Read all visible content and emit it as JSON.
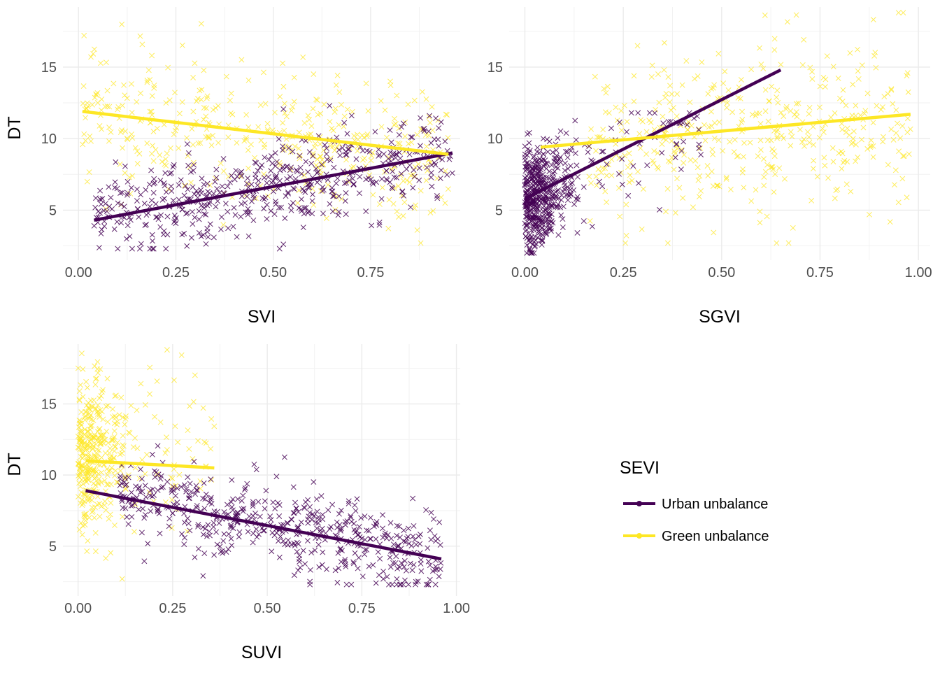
{
  "legend": {
    "title": "SEVI",
    "entries": [
      {
        "label": "Urban unbalance",
        "color": "#440154"
      },
      {
        "label": "Green unbalance",
        "color": "#FDE725"
      }
    ]
  },
  "chart_data": [
    {
      "type": "scatter",
      "xlabel": "SVI",
      "ylabel": "DT",
      "xlim": [
        -0.04,
        0.98
      ],
      "ylim": [
        1.5,
        19.2
      ],
      "xticks": [
        0,
        0.25,
        0.5,
        0.75
      ],
      "xtick_labels": [
        "0.00",
        "0.25",
        "0.50",
        "0.75"
      ],
      "yticks": [
        5,
        10,
        15
      ],
      "ytick_labels": [
        "5",
        "10",
        "15"
      ],
      "grid": true,
      "marker": "x",
      "series": [
        {
          "name": "Urban unbalance",
          "color": "#440154",
          "cloud": {
            "x_min": 0.04,
            "x_max": 0.96,
            "y_at_xmin": 4.3,
            "y_at_xmax": 9.0,
            "y_spread": 1.6,
            "y_min": 2.3,
            "y_max": 12.3,
            "count": 520
          },
          "trend": [
            [
              0.04,
              4.3
            ],
            [
              0.96,
              9.0
            ]
          ]
        },
        {
          "name": "Green unbalance",
          "color": "#FDE725",
          "cloud": {
            "x_min": 0.01,
            "x_max": 0.95,
            "y_at_xmin": 11.9,
            "y_at_xmax": 8.9,
            "y_spread": 2.6,
            "y_min": 2.7,
            "y_max": 18.8,
            "count": 420
          },
          "trend": [
            [
              0.01,
              11.9
            ],
            [
              0.95,
              8.9
            ]
          ]
        }
      ]
    },
    {
      "type": "scatter",
      "xlabel": "SGVI",
      "ylabel": "",
      "xlim": [
        -0.04,
        1.03
      ],
      "ylim": [
        1.5,
        19.2
      ],
      "xticks": [
        0,
        0.25,
        0.5,
        0.75,
        1.0
      ],
      "xtick_labels": [
        "0.00",
        "0.25",
        "0.50",
        "0.75",
        "1.00"
      ],
      "yticks": [
        5,
        10,
        15
      ],
      "ytick_labels": [
        "5",
        "10",
        "15"
      ],
      "grid": true,
      "marker": "x",
      "series": [
        {
          "name": "Urban unbalance",
          "color": "#440154",
          "cloud": {
            "x_min": 0.0,
            "x_max": 0.45,
            "y_at_xmin": 5.8,
            "y_at_xmax": 10.5,
            "y_spread": 1.7,
            "y_min": 2.0,
            "y_max": 11.8,
            "count": 520,
            "x_concentration": 0.05
          },
          "trend": [
            [
              0.0,
              5.8
            ],
            [
              0.65,
              14.8
            ]
          ]
        },
        {
          "name": "Green unbalance",
          "color": "#FDE725",
          "cloud": {
            "x_min": 0.15,
            "x_max": 0.98,
            "y_at_xmin": 9.5,
            "y_at_xmax": 11.7,
            "y_spread": 2.8,
            "y_min": 2.7,
            "y_max": 18.8,
            "count": 420
          },
          "trend": [
            [
              0.04,
              9.4
            ],
            [
              0.98,
              11.7
            ]
          ]
        }
      ]
    },
    {
      "type": "scatter",
      "xlabel": "SUVI",
      "ylabel": "DT",
      "xlim": [
        -0.04,
        1.01
      ],
      "ylim": [
        1.5,
        19.2
      ],
      "xticks": [
        0,
        0.25,
        0.5,
        0.75,
        1.0
      ],
      "xtick_labels": [
        "0.00",
        "0.25",
        "0.50",
        "0.75",
        "1.00"
      ],
      "yticks": [
        5,
        10,
        15
      ],
      "ytick_labels": [
        "5",
        "10",
        "15"
      ],
      "grid": true,
      "marker": "x",
      "series": [
        {
          "name": "Urban unbalance",
          "color": "#440154",
          "cloud": {
            "x_min": 0.11,
            "x_max": 0.96,
            "y_at_xmin": 8.7,
            "y_at_xmax": 4.1,
            "y_spread": 1.5,
            "y_min": 2.3,
            "y_max": 12.2,
            "count": 520
          },
          "trend": [
            [
              0.02,
              8.9
            ],
            [
              0.96,
              4.1
            ]
          ]
        },
        {
          "name": "Green unbalance",
          "color": "#FDE725",
          "cloud": {
            "x_min": 0.0,
            "x_max": 0.36,
            "y_at_xmin": 11.5,
            "y_at_xmax": 10.5,
            "y_spread": 2.8,
            "y_min": 2.7,
            "y_max": 18.8,
            "count": 420,
            "x_concentration": 0.06
          },
          "trend": [
            [
              0.02,
              11.0
            ],
            [
              0.36,
              10.5
            ]
          ]
        }
      ]
    }
  ]
}
